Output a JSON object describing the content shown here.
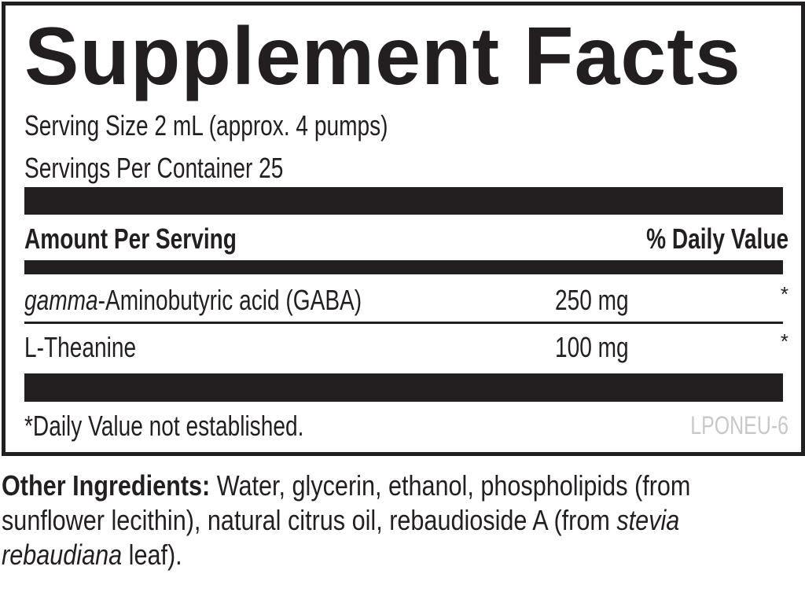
{
  "panel": {
    "title": "Supplement Facts",
    "serving_size": "Serving Size 2 mL (approx. 4 pumps)",
    "servings_per_container": "Servings Per Container 25",
    "header": {
      "amount": "Amount Per Serving",
      "dv": "% Daily Value"
    },
    "rows": [
      {
        "name_italic": "gamma",
        "name": "-Aminobutyric acid (GABA)",
        "amount": "250 mg",
        "dv": "*"
      },
      {
        "name_italic": "",
        "name": "L-Theanine",
        "amount": "100 mg",
        "dv": "*"
      }
    ],
    "footnote": "*Daily Value not established.",
    "code": "LPONEU-6"
  },
  "other_ingredients": {
    "label": "Other Ingredients:",
    "text1": " Water, glycerin, ethanol, phospholipids (from sunflower lecithin), natural citrus oil, rebaudioside A (from ",
    "italic1": "stevia rebaudiana",
    "text2": " leaf)."
  }
}
